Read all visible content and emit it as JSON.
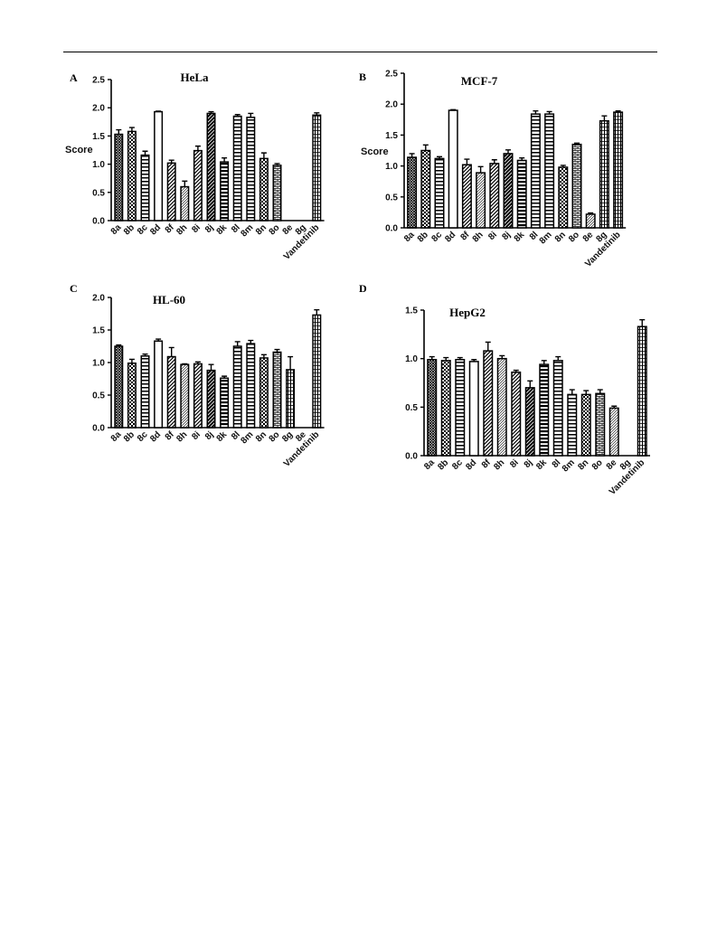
{
  "chart_data": [
    {
      "panel": "A",
      "type": "bar",
      "title": "HeLa",
      "ylabel": "Score",
      "ylim": [
        0,
        2.5
      ],
      "yticks": [
        "0.0",
        "0.5",
        "1.0",
        "1.5",
        "2.0",
        "2.5"
      ],
      "categories": [
        "8a",
        "8b",
        "8c",
        "8d",
        "8f",
        "8h",
        "8i",
        "8j",
        "8k",
        "8l",
        "8m",
        "8n",
        "8o",
        "8e",
        "8g",
        "Vandetinib"
      ],
      "values": [
        1.53,
        1.58,
        1.16,
        1.93,
        1.02,
        0.6,
        1.24,
        1.9,
        1.04,
        1.85,
        1.83,
        1.1,
        0.98,
        0,
        0,
        1.87
      ],
      "errors": [
        0.08,
        0.07,
        0.07,
        0.01,
        0.05,
        0.1,
        0.08,
        0.03,
        0.07,
        0.03,
        0.07,
        0.1,
        0.03,
        0,
        0,
        0.04
      ],
      "patterns": [
        "cross",
        "checker",
        "hlines",
        "solid",
        "diag",
        "diagthin",
        "diag",
        "diagbold",
        "hlinesthick",
        "hlines",
        "hlines",
        "checker",
        "bricks",
        "none",
        "none",
        "vlines"
      ]
    },
    {
      "panel": "B",
      "type": "bar",
      "title": "MCF-7",
      "ylabel": "Score",
      "ylim": [
        0,
        2.5
      ],
      "yticks": [
        "0.0",
        "0.5",
        "1.0",
        "1.5",
        "2.0",
        "2.5"
      ],
      "categories": [
        "8a",
        "8b",
        "8c",
        "8d",
        "8f",
        "8h",
        "8i",
        "8j",
        "8k",
        "8l",
        "8m",
        "8n",
        "8o",
        "8e",
        "8g",
        "Vandetinib"
      ],
      "values": [
        1.14,
        1.25,
        1.12,
        1.9,
        1.02,
        0.89,
        1.04,
        1.2,
        1.09,
        1.84,
        1.84,
        0.98,
        1.35,
        0.22,
        1.73,
        1.87
      ],
      "errors": [
        0.06,
        0.09,
        0.03,
        0.01,
        0.09,
        0.1,
        0.06,
        0.06,
        0.04,
        0.05,
        0.04,
        0.03,
        0.02,
        0.02,
        0.08,
        0.02
      ],
      "patterns": [
        "cross",
        "checker",
        "hlines",
        "solid",
        "diag",
        "diagthin",
        "diag",
        "diagbold",
        "hlinesthick",
        "hlines",
        "hlines",
        "checker",
        "bricks",
        "diagthin",
        "vlines",
        "vlines"
      ]
    },
    {
      "panel": "C",
      "type": "bar",
      "title": "HL-60",
      "ylabel": "",
      "ylim": [
        0,
        2.0
      ],
      "yticks": [
        "0.0",
        "0.5",
        "1.0",
        "1.5",
        "2.0"
      ],
      "categories": [
        "8a",
        "8b",
        "8c",
        "8d",
        "8f",
        "8h",
        "8i",
        "8j",
        "8k",
        "8l",
        "8m",
        "8n",
        "8o",
        "8g",
        "8e",
        "Vandetinib"
      ],
      "values": [
        1.25,
        0.99,
        1.1,
        1.33,
        1.09,
        0.97,
        0.98,
        0.88,
        0.76,
        1.25,
        1.29,
        1.07,
        1.16,
        0.89,
        0,
        1.73
      ],
      "errors": [
        0.02,
        0.06,
        0.03,
        0.03,
        0.14,
        0.01,
        0.03,
        0.09,
        0.03,
        0.07,
        0.05,
        0.05,
        0.04,
        0.2,
        0,
        0.08
      ],
      "patterns": [
        "cross",
        "checker",
        "hlines",
        "solid",
        "diag",
        "diagthin",
        "diag",
        "diagbold",
        "hlinesthick",
        "hlines",
        "hlines",
        "checker",
        "bricks",
        "vlines",
        "none",
        "vlines"
      ]
    },
    {
      "panel": "D",
      "type": "bar",
      "title": "HepG2",
      "ylabel": "",
      "ylim": [
        0,
        1.5
      ],
      "yticks": [
        "0.0",
        "0.5",
        "1.0",
        "1.5"
      ],
      "categories": [
        "8a",
        "8b",
        "8c",
        "8d",
        "8f",
        "8h",
        "8i",
        "8j",
        "8k",
        "8l",
        "8m",
        "8n",
        "8o",
        "8e",
        "8g",
        "Vandetinib"
      ],
      "values": [
        0.99,
        0.98,
        0.99,
        0.97,
        1.08,
        1.0,
        0.86,
        0.7,
        0.94,
        0.98,
        0.63,
        0.63,
        0.64,
        0.49,
        0,
        1.33
      ],
      "errors": [
        0.03,
        0.03,
        0.02,
        0.02,
        0.09,
        0.03,
        0.02,
        0.07,
        0.04,
        0.04,
        0.05,
        0.04,
        0.04,
        0.02,
        0,
        0.07
      ],
      "patterns": [
        "cross",
        "checker",
        "hlines",
        "solid",
        "diag",
        "diagthin",
        "diag",
        "diagbold",
        "hlinesthick",
        "hlines",
        "hlines",
        "checker",
        "bricks",
        "diagthin",
        "none",
        "vlines"
      ]
    }
  ]
}
